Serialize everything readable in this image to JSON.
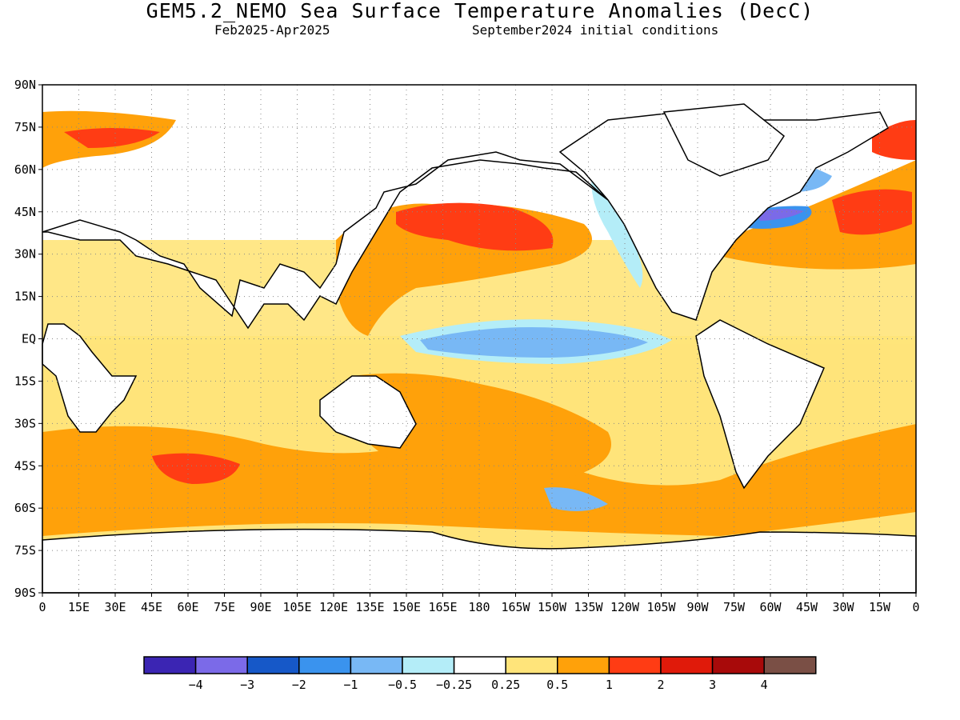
{
  "title": "GEM5.2_NEMO Sea Surface Temperature Anomalies (DecC)",
  "subtitle_left": "Feb2025-Apr2025",
  "subtitle_right": "September2024 initial conditions",
  "lat_labels": [
    "90N",
    "75N",
    "60N",
    "45N",
    "30N",
    "15N",
    "EQ",
    "15S",
    "30S",
    "45S",
    "60S",
    "75S",
    "90S"
  ],
  "lon_labels": [
    "0",
    "15E",
    "30E",
    "45E",
    "60E",
    "75E",
    "90E",
    "105E",
    "120E",
    "135E",
    "150E",
    "165E",
    "180",
    "165W",
    "150W",
    "135W",
    "120W",
    "105W",
    "90W",
    "75W",
    "60W",
    "45W",
    "30W",
    "15W",
    "0"
  ],
  "colorbar": {
    "colors": [
      "#3b25b3",
      "#7b6ae8",
      "#1658c8",
      "#3a93ee",
      "#78b8f5",
      "#b4edf8",
      "#ffffff",
      "#ffe47a",
      "#ffa10a",
      "#ff3c14",
      "#e01a0a",
      "#a80a0a",
      "#7a4f45"
    ],
    "labels": [
      "-4",
      "-3",
      "-2",
      "-1",
      "-0.5",
      "-0.25",
      "0.25",
      "0.5",
      "1",
      "2",
      "3",
      "4"
    ]
  }
}
